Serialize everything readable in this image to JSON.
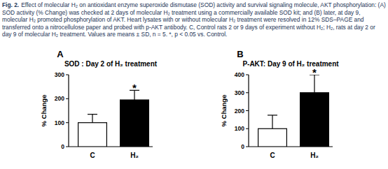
{
  "caption_label": "Fig. 2.",
  "caption": "Effect of molecular H₂ on antioxidant enzyme superoxide dismutase (SOD) activity and survival signaling molecule, AKT phosphorylation: (A) SOD activity (% Change) was checked at 2 days of molecular H₂ treatment using a commercially available SOD kit; and (B) later, at day 9, molecular H₂ promoted phosphorylation of AKT. Heart lysates with or without molecular H₂ treatment were resolved in 12% SDS–PAGE and transferred onto a nitrocellulose paper and probed with p-AKT antibody. C, Control rats 2 or 9 days of experiment without H₂; H₂, rats at day 2 or day 9 of molecular H₂ treatment. Values are means ± SD, n = 5. *, p < 0.05 vs. Control.",
  "chart_data": [
    {
      "type": "bar",
      "panel_label": "A",
      "title": "SOD : Day 2 of H₂ treatment",
      "y_label": "% Change",
      "categories": [
        "C",
        "H₂"
      ],
      "values": [
        100,
        195
      ],
      "errors": [
        35,
        40
      ],
      "colors": [
        "#ffffff",
        "#000000"
      ],
      "significance": [
        null,
        "*"
      ],
      "ylim": [
        0,
        300
      ],
      "yticks": [
        0,
        100,
        200,
        300
      ],
      "grid": false
    },
    {
      "type": "bar",
      "panel_label": "B",
      "title": "P-AKT: Day 9 of H₂ treatment",
      "y_label": "% Change",
      "categories": [
        "C",
        "H₂"
      ],
      "values": [
        100,
        300
      ],
      "errors": [
        75,
        100
      ],
      "colors": [
        "#ffffff",
        "#000000"
      ],
      "significance": [
        null,
        "*"
      ],
      "ylim": [
        0,
        400
      ],
      "yticks": [
        0,
        100,
        200,
        300,
        400
      ],
      "grid": false
    }
  ]
}
